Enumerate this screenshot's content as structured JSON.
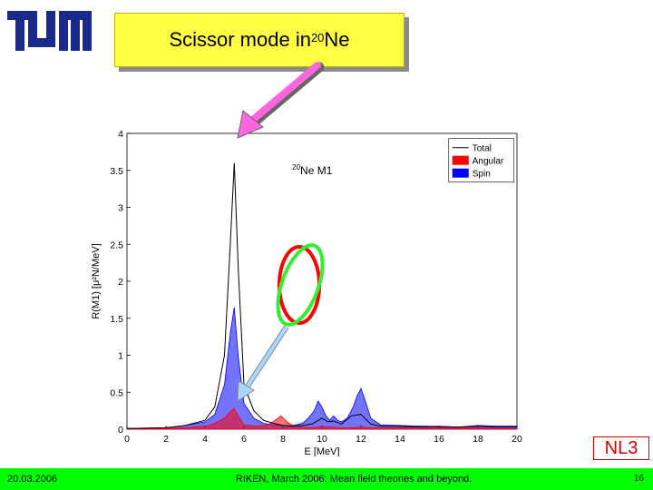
{
  "logo": {
    "name": "TUM"
  },
  "title": {
    "prefix": "Scissor mode in ",
    "superscript": "20",
    "suffix": "Ne"
  },
  "nl3_label": "NL3",
  "footer": {
    "date": "20.03.2006",
    "center": "RIKEN, March 2006: Mean field theories and beyond.",
    "page": "16"
  },
  "colors": {
    "title_bg": "#ffff44",
    "footer_bg": "#00ff00",
    "total": "#000000",
    "angular": "#ff0000",
    "spin": "#0000ff",
    "nl3": "#d40000",
    "arrow_pink": "#ff66dd",
    "arrow_blue": "#a8d8ff",
    "ellipse_red": "#ff0000",
    "ellipse_green": "#33ee33"
  },
  "chart_data": {
    "type": "line",
    "annotation": {
      "super": "20",
      "text": "Ne  M1"
    },
    "xlabel": "E [MeV]",
    "ylabel": "R(M1) [μ²N/MeV]",
    "xlim": [
      0,
      20
    ],
    "ylim": [
      0,
      4
    ],
    "xticks": [
      0,
      2,
      4,
      6,
      8,
      10,
      12,
      14,
      16,
      18,
      20
    ],
    "yticks": [
      0,
      0.5,
      1,
      1.5,
      2,
      2.5,
      3,
      3.5,
      4
    ],
    "legend": {
      "position": "top-right",
      "entries": [
        "Total",
        "Angular",
        "Spin"
      ]
    },
    "series": [
      {
        "name": "Total",
        "style": "line",
        "x": [
          0,
          2,
          3,
          4,
          4.5,
          5,
          5.3,
          5.5,
          5.7,
          6,
          6.5,
          7,
          7.5,
          8,
          8.5,
          9,
          9.5,
          10,
          10.3,
          10.6,
          11,
          11.5,
          12,
          12.5,
          13,
          14,
          15,
          16,
          17,
          18,
          19,
          20
        ],
        "values": [
          0.01,
          0.02,
          0.05,
          0.12,
          0.3,
          1.0,
          2.5,
          3.6,
          2.2,
          0.6,
          0.25,
          0.12,
          0.08,
          0.05,
          0.04,
          0.05,
          0.07,
          0.15,
          0.1,
          0.11,
          0.07,
          0.18,
          0.2,
          0.07,
          0.04,
          0.04,
          0.03,
          0.03,
          0.03,
          0.04,
          0.03,
          0.03
        ]
      },
      {
        "name": "Angular",
        "style": "area",
        "x": [
          0,
          2,
          3,
          4,
          4.5,
          5,
          5.3,
          5.5,
          5.7,
          6,
          6.5,
          7,
          7.3,
          7.6,
          7.9,
          8.2,
          8.5,
          9,
          9.5,
          10,
          10.3,
          10.6,
          11,
          11.5,
          12,
          12.5,
          13,
          14,
          15,
          16,
          17,
          18,
          19,
          20
        ],
        "values": [
          0,
          0.01,
          0.02,
          0.04,
          0.08,
          0.15,
          0.24,
          0.28,
          0.18,
          0.06,
          0.04,
          0.05,
          0.07,
          0.12,
          0.18,
          0.1,
          0.05,
          0.03,
          0.02,
          0.04,
          0.03,
          0.03,
          0.02,
          0.02,
          0.03,
          0.02,
          0.02,
          0.02,
          0.03,
          0.04,
          0.02,
          0.02,
          0.01,
          0.01
        ]
      },
      {
        "name": "Spin",
        "style": "area",
        "x": [
          0,
          2,
          3,
          4,
          4.5,
          5,
          5.3,
          5.5,
          5.7,
          6,
          6.5,
          7,
          7.5,
          8,
          8.5,
          9,
          9.3,
          9.6,
          9.8,
          10,
          10.2,
          10.4,
          10.6,
          10.8,
          11,
          11.3,
          11.6,
          11.8,
          12,
          12.2,
          12.5,
          13,
          14,
          15,
          16,
          17,
          18,
          19,
          20
        ],
        "values": [
          0.01,
          0.02,
          0.05,
          0.1,
          0.2,
          0.6,
          1.3,
          1.65,
          1.0,
          0.35,
          0.15,
          0.08,
          0.06,
          0.05,
          0.05,
          0.08,
          0.15,
          0.25,
          0.38,
          0.3,
          0.18,
          0.12,
          0.18,
          0.12,
          0.1,
          0.15,
          0.3,
          0.45,
          0.55,
          0.4,
          0.15,
          0.06,
          0.05,
          0.04,
          0.04,
          0.03,
          0.05,
          0.04,
          0.04
        ]
      }
    ]
  }
}
